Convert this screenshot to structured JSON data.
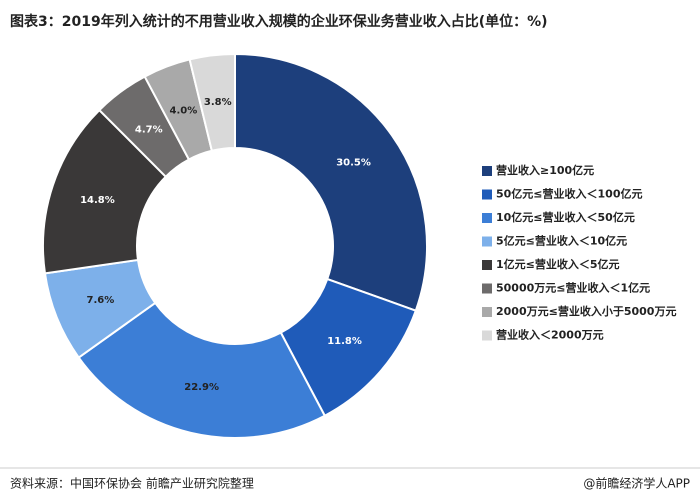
{
  "title": "图表3：2019年列入统计的不用营业收入规模的企业环保业务营业收入占比(单位：%)",
  "chart_data": {
    "type": "donut",
    "categories": [
      "营业收入≥100亿元",
      "50亿元≤营业收入＜100亿元",
      "10亿元≤营业收入＜50亿元",
      "5亿元≤营业收入＜10亿元",
      "1亿元≤营业收入＜5亿元",
      "50000万元≤营业收入＜1亿元",
      "2000万元≤营业收入小于5000万元",
      "营业收入＜2000万元"
    ],
    "values": [
      30.5,
      11.8,
      22.9,
      7.6,
      14.8,
      4.7,
      4.0,
      3.8
    ],
    "value_labels": [
      "30.5%",
      "11.8%",
      "22.9%",
      "7.6%",
      "14.8%",
      "4.7%",
      "4.0%",
      "3.8%"
    ],
    "colors": [
      "#1d3f7c",
      "#1f5bb9",
      "#3c7ed6",
      "#7db0ea",
      "#3a3838",
      "#6d6b6b",
      "#a9a9a9",
      "#d9d9d9"
    ]
  },
  "footer": {
    "source": "资料来源：中国环保协会 前瞻产业研究院整理",
    "brand": "@前瞻经济学人APP"
  }
}
